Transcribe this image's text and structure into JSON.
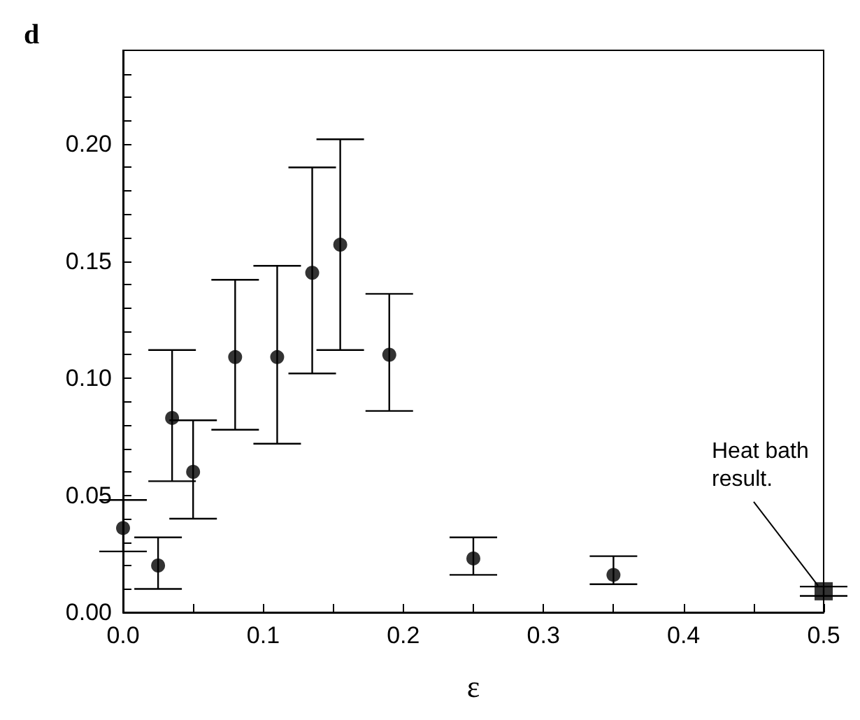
{
  "chart_data": {
    "type": "scatter",
    "title": "d",
    "xlabel": "ε",
    "xlim": [
      0,
      0.5
    ],
    "ylim": [
      0,
      0.24
    ],
    "xticks": [
      {
        "value": 0,
        "label": "0.0"
      },
      {
        "value": 0.05,
        "label": null
      },
      {
        "value": 0.1,
        "label": "0.1"
      },
      {
        "value": 0.15,
        "label": null
      },
      {
        "value": 0.2,
        "label": "0.2"
      },
      {
        "value": 0.25,
        "label": null
      },
      {
        "value": 0.3,
        "label": "0.3"
      },
      {
        "value": 0.35,
        "label": null
      },
      {
        "value": 0.4,
        "label": "0.4"
      },
      {
        "value": 0.45,
        "label": null
      },
      {
        "value": 0.5,
        "label": "0.5"
      }
    ],
    "yticks": [
      {
        "value": 0,
        "label": "0.00"
      },
      {
        "value": 0.01,
        "label": null
      },
      {
        "value": 0.02,
        "label": null
      },
      {
        "value": 0.03,
        "label": null
      },
      {
        "value": 0.04,
        "label": null
      },
      {
        "value": 0.05,
        "label": "0.05"
      },
      {
        "value": 0.06,
        "label": null
      },
      {
        "value": 0.07,
        "label": null
      },
      {
        "value": 0.08,
        "label": null
      },
      {
        "value": 0.09,
        "label": null
      },
      {
        "value": 0.1,
        "label": "0.10"
      },
      {
        "value": 0.11,
        "label": null
      },
      {
        "value": 0.12,
        "label": null
      },
      {
        "value": 0.13,
        "label": null
      },
      {
        "value": 0.14,
        "label": null
      },
      {
        "value": 0.15,
        "label": "0.15"
      },
      {
        "value": 0.16,
        "label": null
      },
      {
        "value": 0.17,
        "label": null
      },
      {
        "value": 0.18,
        "label": null
      },
      {
        "value": 0.19,
        "label": null
      },
      {
        "value": 0.2,
        "label": "0.20"
      },
      {
        "value": 0.21,
        "label": null
      },
      {
        "value": 0.22,
        "label": null
      },
      {
        "value": 0.23,
        "label": null
      }
    ],
    "series": [
      {
        "color": "#000000",
        "marker": "circle",
        "x": [
          0,
          0.025,
          0.035,
          0.05,
          0.08,
          0.11,
          0.135,
          0.155,
          0.19,
          0.25,
          0.35
        ],
        "values": [
          0.036,
          0.02,
          0.083,
          0.06,
          0.109,
          0.109,
          0.145,
          0.157,
          0.11,
          0.023,
          0.016
        ],
        "errors": [
          [
            0.026,
            0.048
          ],
          [
            0.01,
            0.032
          ],
          [
            0.056,
            0.112
          ],
          [
            0.04,
            0.082
          ],
          [
            0.078,
            0.142
          ],
          [
            0.072,
            0.148
          ],
          [
            0.102,
            0.19
          ],
          [
            0.112,
            0.202
          ],
          [
            0.086,
            0.136
          ],
          [
            0.016,
            0.032
          ],
          [
            0.012,
            0.024
          ]
        ]
      },
      {
        "color": "#000000",
        "marker": "square",
        "x": [
          0.5
        ],
        "values": [
          0.009
        ],
        "errors": [
          [
            0.007,
            0.011
          ]
        ]
      }
    ],
    "annotations": [
      {
        "text": "Heat bath\nresult.",
        "x": 0.5,
        "y": 0.009
      }
    ]
  }
}
